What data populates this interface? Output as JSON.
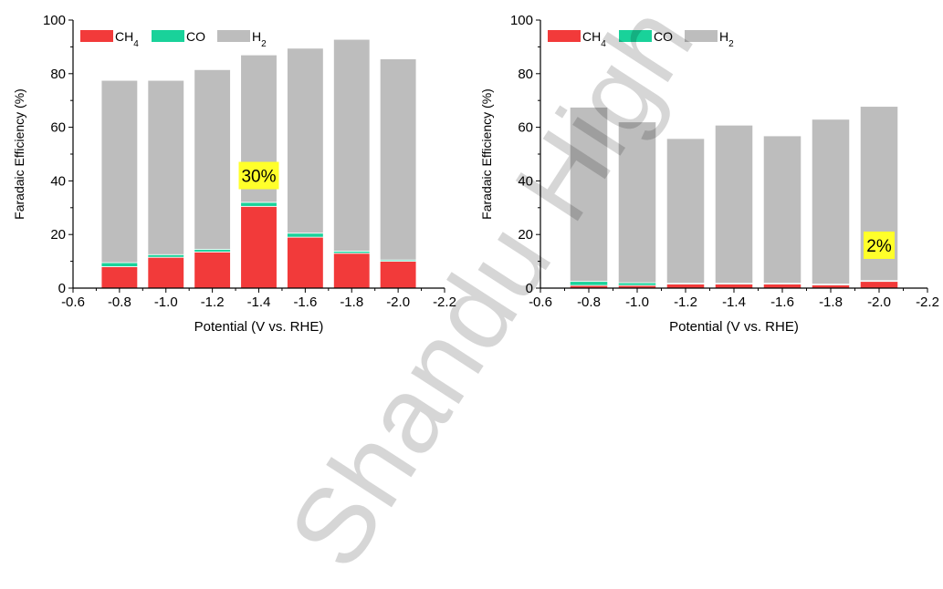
{
  "watermark": {
    "text": "Shandu High Sci"
  },
  "colors": {
    "CH4": "#f23a3a",
    "CO": "#19d29a",
    "H2": "#bdbdbd",
    "highlight": "#ffff2a"
  },
  "chart_data": [
    {
      "type": "bar",
      "stacked": true,
      "title": "",
      "xlabel": "Potential (V vs. RHE)",
      "ylabel": "Faradaic Efficiency (%)",
      "xlim": [
        -0.6,
        -2.2
      ],
      "ylim": [
        0,
        100
      ],
      "xticks": [
        "-0.6",
        "-0.8",
        "-1.0",
        "-1.2",
        "-1.4",
        "-1.6",
        "-1.8",
        "-2.0",
        "-2.2"
      ],
      "yticks": [
        "0",
        "20",
        "40",
        "60",
        "80",
        "100"
      ],
      "x": [
        -0.8,
        -1.0,
        -1.2,
        -1.4,
        -1.6,
        -1.8,
        -2.0
      ],
      "series": [
        {
          "key": "CH4",
          "name": "CH₄",
          "values": [
            8,
            11.5,
            13.5,
            30.5,
            19,
            13,
            10
          ]
        },
        {
          "key": "CO",
          "name": "CO",
          "values": [
            1.5,
            1,
            1,
            1.5,
            1.5,
            0.8,
            0.5
          ]
        },
        {
          "key": "H2",
          "name": "H₂",
          "values": [
            68,
            65,
            67,
            55,
            69,
            79,
            75
          ]
        }
      ],
      "legend": "top-left",
      "annotation": {
        "text": "30%",
        "x": -1.4,
        "y": 42
      }
    },
    {
      "type": "bar",
      "stacked": true,
      "title": "",
      "xlabel": "Potential (V vs. RHE)",
      "ylabel": "Faradaic Efficiency (%)",
      "xlim": [
        -0.6,
        -2.2
      ],
      "ylim": [
        0,
        100
      ],
      "xticks": [
        "-0.6",
        "-0.8",
        "-1.0",
        "-1.2",
        "-1.4",
        "-1.6",
        "-1.8",
        "-2.0",
        "-2.2"
      ],
      "yticks": [
        "0",
        "20",
        "40",
        "60",
        "80",
        "100"
      ],
      "x": [
        -0.8,
        -1.0,
        -1.2,
        -1.4,
        -1.6,
        -1.8,
        -2.0
      ],
      "series": [
        {
          "key": "CH4",
          "name": "CH₄",
          "values": [
            1,
            1,
            1.5,
            1.5,
            1.5,
            1.2,
            2.5
          ]
        },
        {
          "key": "CO",
          "name": "CO",
          "values": [
            1.5,
            1,
            0.3,
            0.3,
            0.3,
            0.3,
            0.3
          ]
        },
        {
          "key": "H2",
          "name": "H₂",
          "values": [
            65,
            60,
            54,
            59,
            55,
            61.5,
            65
          ]
        }
      ],
      "legend": "top-left",
      "annotation": {
        "text": "2%",
        "x": -2.0,
        "y": 16
      }
    }
  ]
}
